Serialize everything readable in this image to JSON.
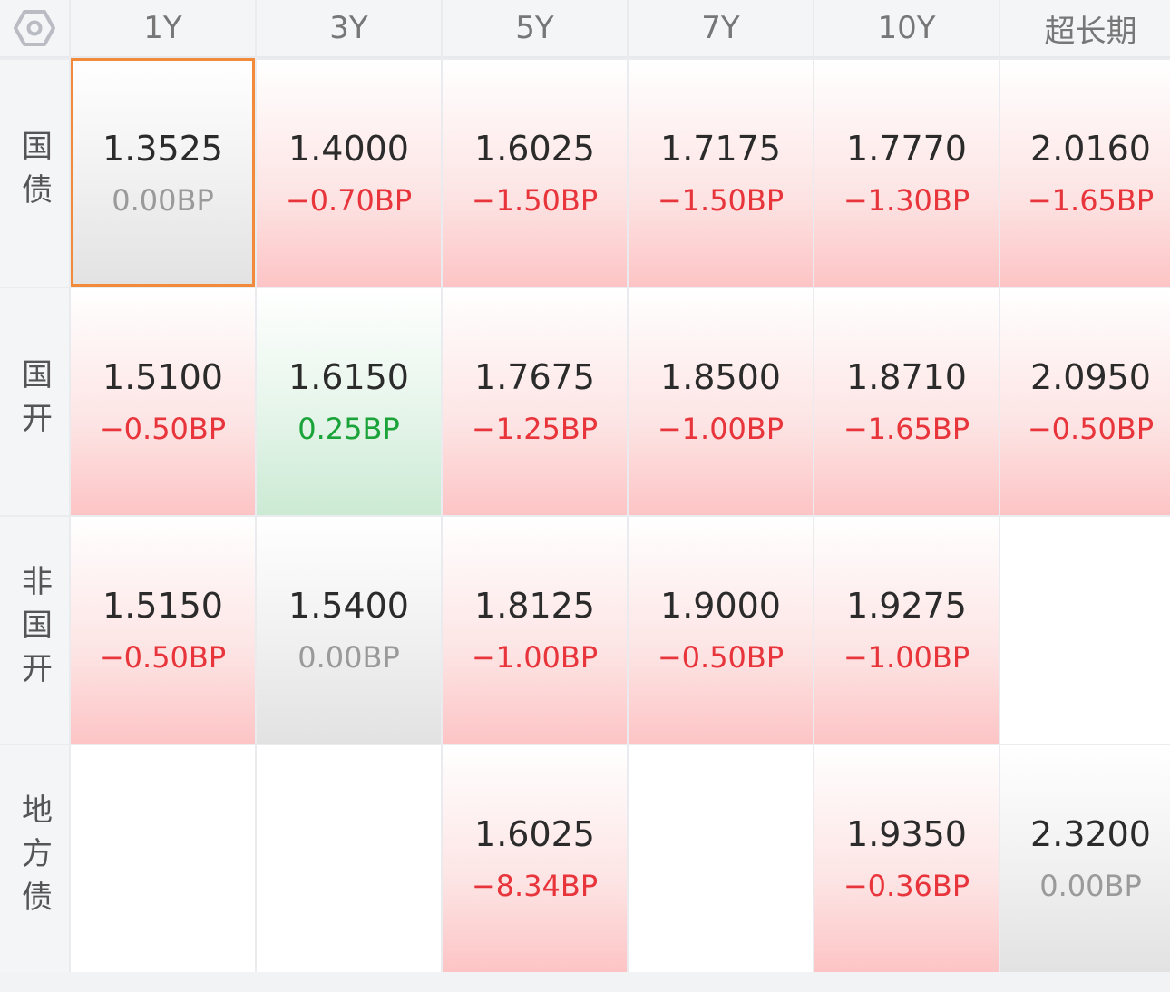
{
  "colors": {
    "up": "#e8353b",
    "down": "#1aa339",
    "flat": "#9a9a9a",
    "selected_border": "#f28a3c"
  },
  "columns": [
    "1Y",
    "3Y",
    "5Y",
    "7Y",
    "10Y",
    "超长期"
  ],
  "rows": [
    {
      "label": "国债",
      "cells": [
        {
          "yield": "1.3525",
          "change": "0.00BP",
          "tone": "gray",
          "selected": true
        },
        {
          "yield": "1.4000",
          "change": "−0.70BP",
          "tone": "red"
        },
        {
          "yield": "1.6025",
          "change": "−1.50BP",
          "tone": "red"
        },
        {
          "yield": "1.7175",
          "change": "−1.50BP",
          "tone": "red"
        },
        {
          "yield": "1.7770",
          "change": "−1.30BP",
          "tone": "red"
        },
        {
          "yield": "2.0160",
          "change": "−1.65BP",
          "tone": "red"
        }
      ]
    },
    {
      "label": "国开",
      "cells": [
        {
          "yield": "1.5100",
          "change": "−0.50BP",
          "tone": "red"
        },
        {
          "yield": "1.6150",
          "change": "0.25BP",
          "tone": "green"
        },
        {
          "yield": "1.7675",
          "change": "−1.25BP",
          "tone": "red"
        },
        {
          "yield": "1.8500",
          "change": "−1.00BP",
          "tone": "red"
        },
        {
          "yield": "1.8710",
          "change": "−1.65BP",
          "tone": "red"
        },
        {
          "yield": "2.0950",
          "change": "−0.50BP",
          "tone": "red"
        }
      ]
    },
    {
      "label": "非国开",
      "cells": [
        {
          "yield": "1.5150",
          "change": "−0.50BP",
          "tone": "red"
        },
        {
          "yield": "1.5400",
          "change": "0.00BP",
          "tone": "gray"
        },
        {
          "yield": "1.8125",
          "change": "−1.00BP",
          "tone": "red"
        },
        {
          "yield": "1.9000",
          "change": "−0.50BP",
          "tone": "red"
        },
        {
          "yield": "1.9275",
          "change": "−1.00BP",
          "tone": "red"
        },
        null
      ]
    },
    {
      "label": "地方债",
      "cells": [
        null,
        null,
        {
          "yield": "1.6025",
          "change": "−8.34BP",
          "tone": "red"
        },
        null,
        {
          "yield": "1.9350",
          "change": "−0.36BP",
          "tone": "red"
        },
        {
          "yield": "2.3200",
          "change": "0.00BP",
          "tone": "gray"
        }
      ]
    }
  ]
}
